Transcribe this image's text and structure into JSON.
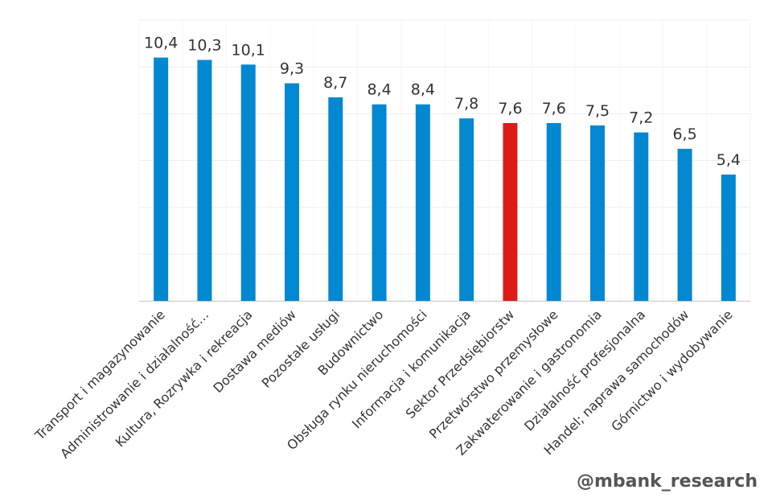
{
  "chart_data": {
    "type": "bar",
    "categories": [
      "Transport i magazynowanie",
      "Administrowanie i działalność…",
      "Kultura, Rozrywka i rekreacja",
      "Dostawa mediów",
      "Pozostałe usługi",
      "Budownictwo",
      "Obsługa rynku nieruchomości",
      "Informacja i komunikacja",
      "Sektor Przedsiębiorstw",
      "Przetwórstwo przemysłowe",
      "Zakwaterowanie i gastronomia",
      "Działalność profesjonalna",
      "Handel; naprawa samochodów",
      "Górnictwo i wydobywanie"
    ],
    "values": [
      10.4,
      10.3,
      10.1,
      9.3,
      8.7,
      8.4,
      8.4,
      7.8,
      7.6,
      7.6,
      7.5,
      7.2,
      6.5,
      5.4
    ],
    "value_labels": [
      "10,4",
      "10,3",
      "10,1",
      "9,3",
      "8,7",
      "8,4",
      "8,4",
      "7,8",
      "7,6",
      "7,6",
      "7,5",
      "7,2",
      "6,5",
      "5,4"
    ],
    "highlight_index": 8,
    "ylim": [
      0,
      12
    ],
    "grid": true,
    "title": "",
    "xlabel": "",
    "ylabel": "",
    "colors": {
      "bar": "#0288D1",
      "highlight": "#DD1C1A",
      "grid": "#eeeeee",
      "axis": "#cccccc"
    }
  },
  "watermark": "@mbank_research"
}
